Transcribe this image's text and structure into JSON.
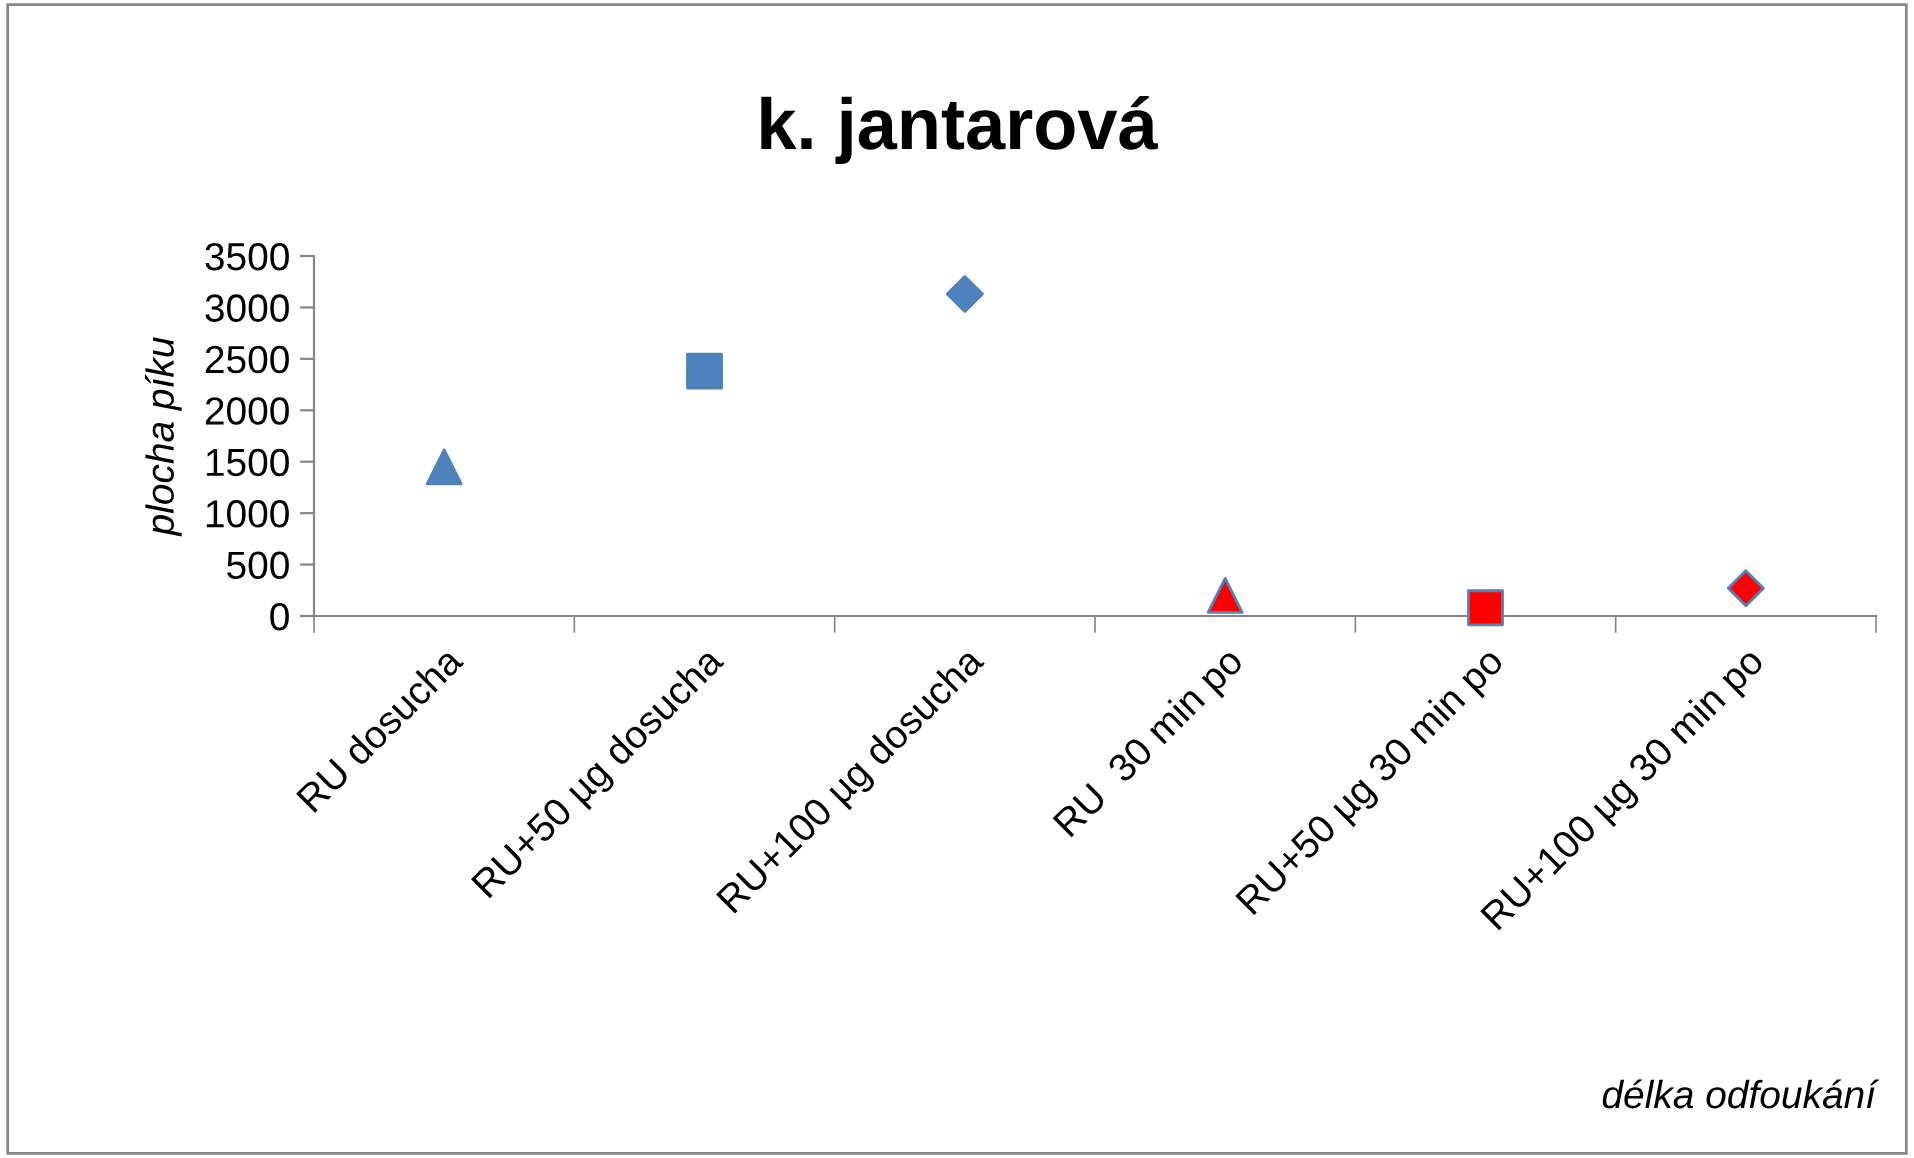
{
  "chart_data": {
    "type": "scatter",
    "title": "k. jantarová",
    "xlabel": "délka odfoukání",
    "ylabel": "plocha píku",
    "categories": [
      "RU dosucha",
      "RU+50 µg dosucha",
      "RU+100 µg dosucha",
      "RU  30 min po",
      "RU+50 µg 30 min po",
      "RU+100 µg 30 min po"
    ],
    "series": [
      {
        "x": [
          "RU dosucha"
        ],
        "values": [
          1450
        ],
        "color": "#4f81bd",
        "marker": "triangle"
      },
      {
        "x": [
          "RU+50 µg dosucha"
        ],
        "values": [
          2380
        ],
        "color": "#4f81bd",
        "marker": "square"
      },
      {
        "x": [
          "RU+100 µg dosucha"
        ],
        "values": [
          3130
        ],
        "color": "#4f81bd",
        "marker": "diamond"
      },
      {
        "x": [
          "RU  30 min po"
        ],
        "values": [
          200
        ],
        "color": "#ff0000",
        "marker": "triangle"
      },
      {
        "x": [
          "RU+50 µg 30 min po"
        ],
        "values": [
          80
        ],
        "color": "#ff0000",
        "marker": "square"
      },
      {
        "x": [
          "RU+100 µg 30 min po"
        ],
        "values": [
          270
        ],
        "color": "#ff0000",
        "marker": "diamond"
      }
    ],
    "ylim": [
      0,
      3500
    ],
    "yticks": [
      0,
      500,
      1000,
      1500,
      2000,
      2500,
      3000,
      3500
    ],
    "grid": false,
    "legend": false
  }
}
